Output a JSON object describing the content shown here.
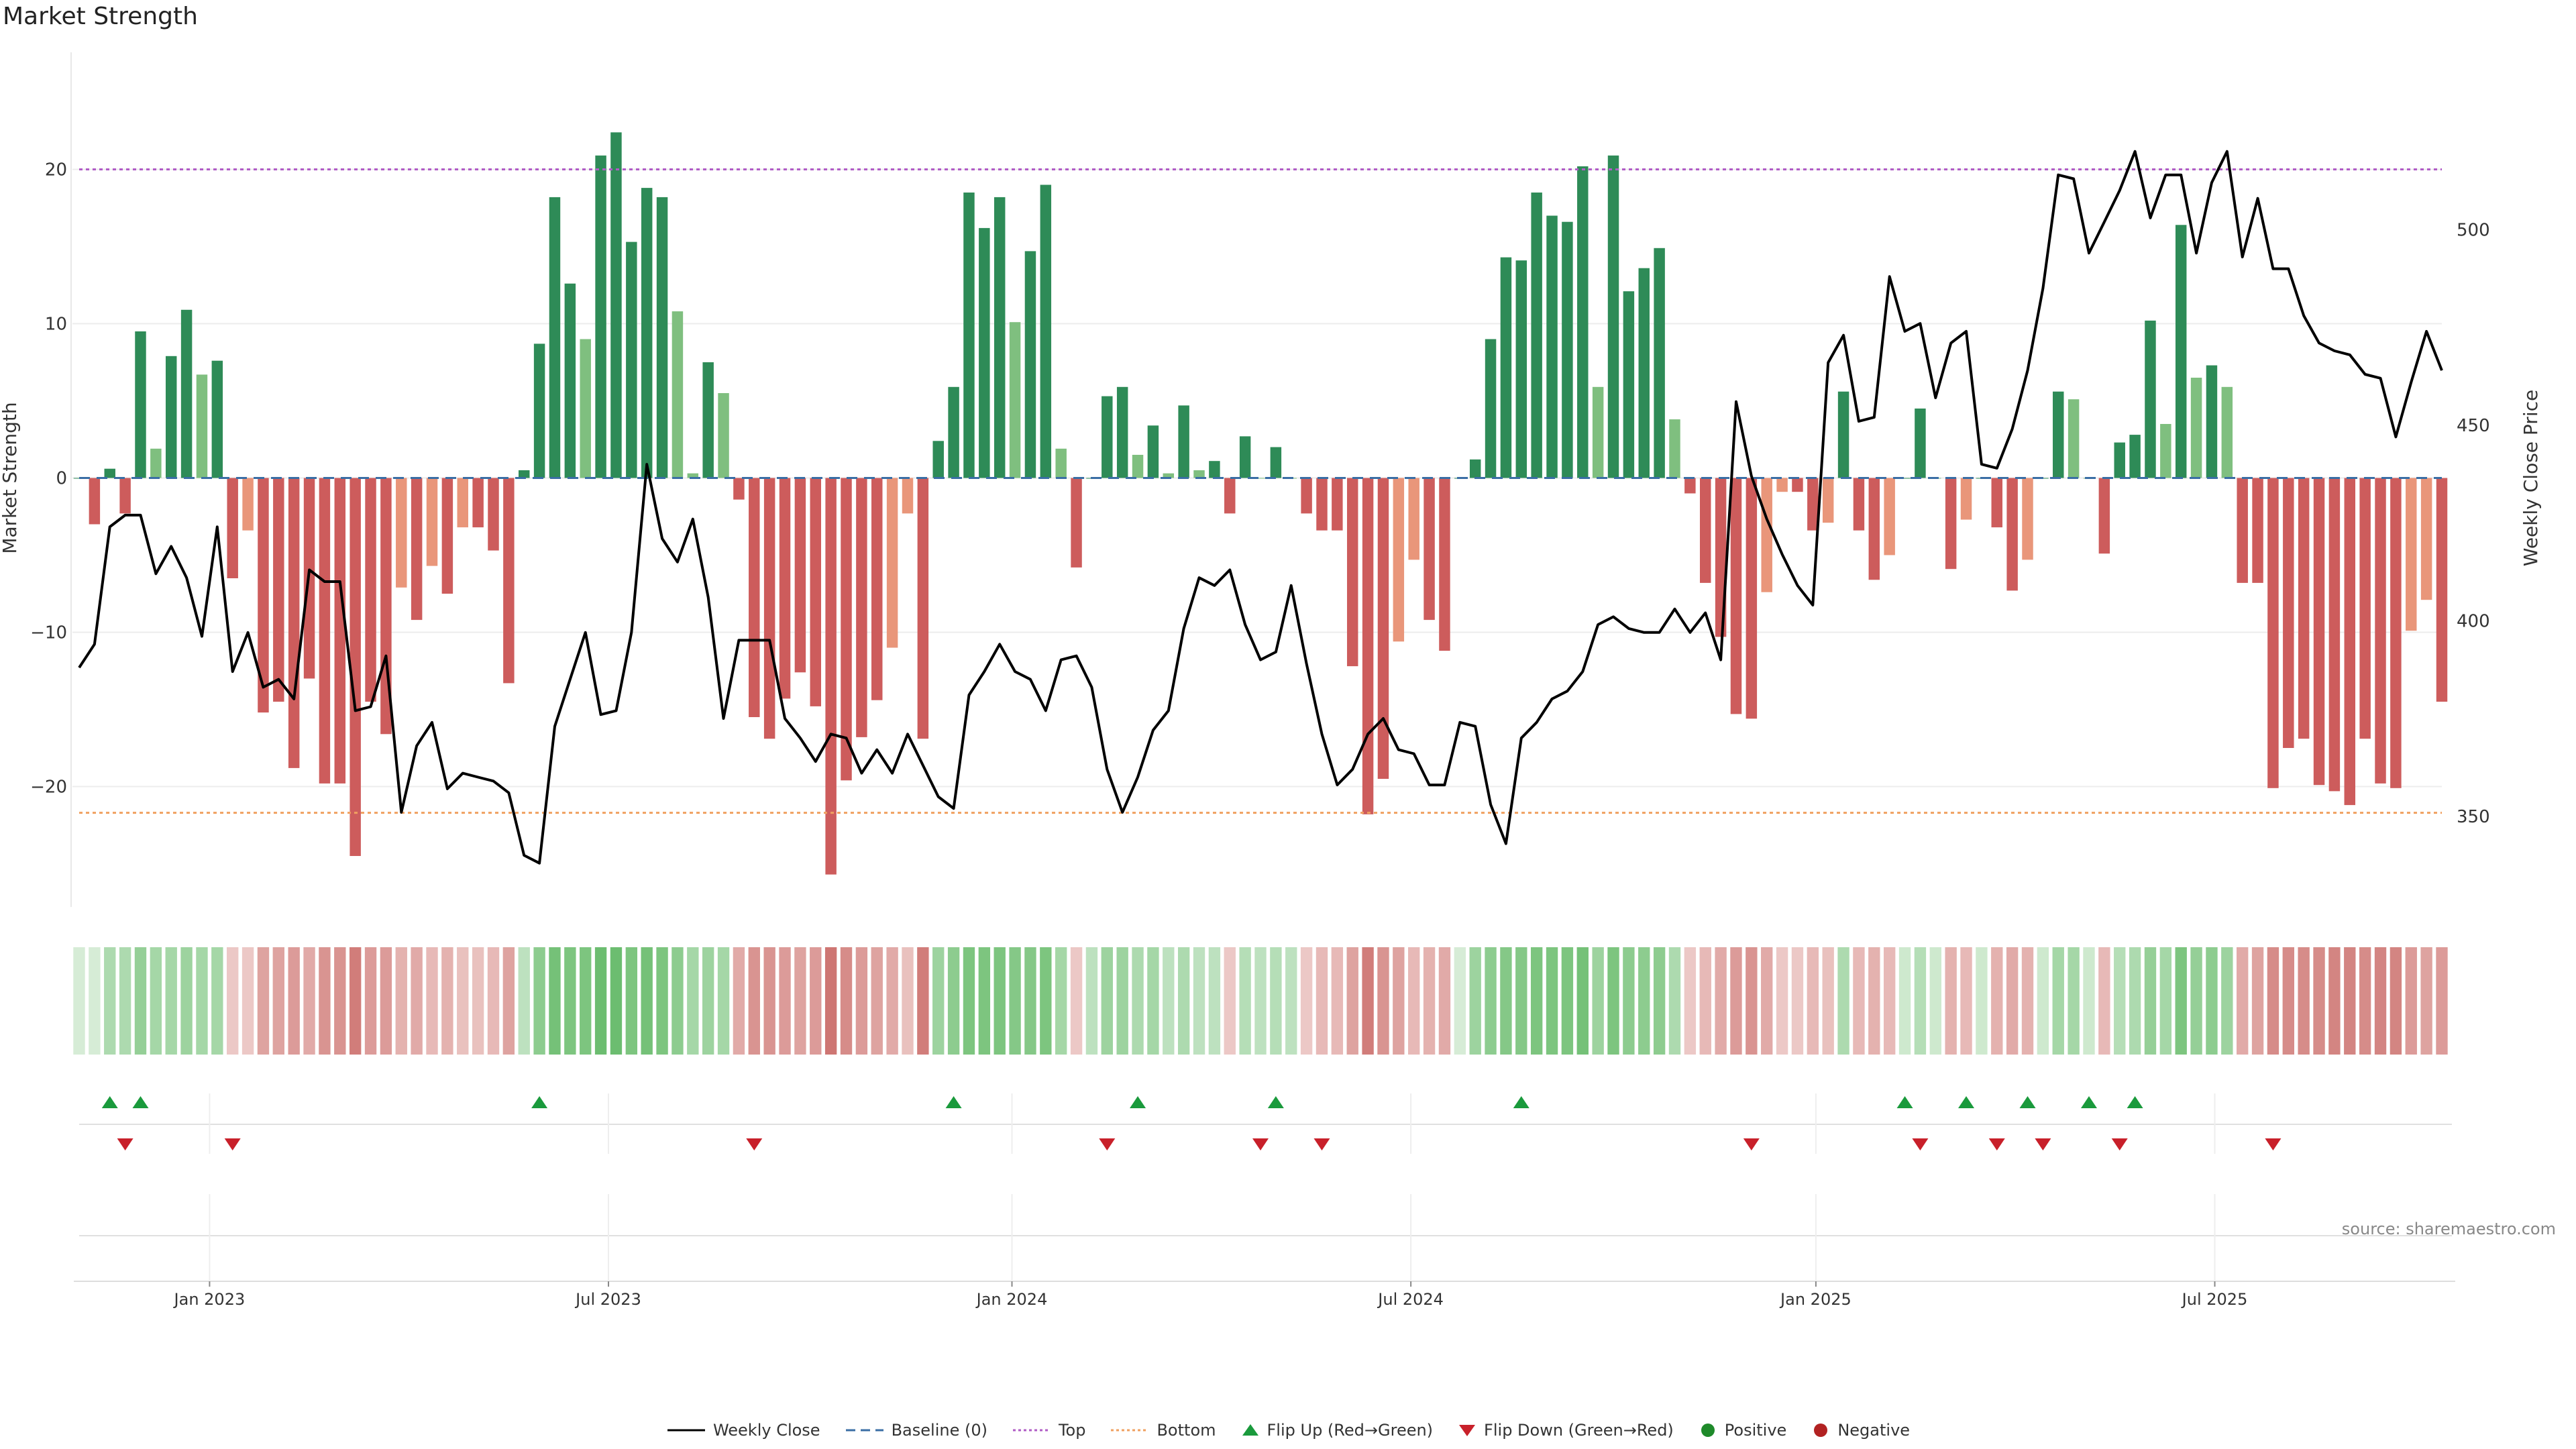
{
  "title": "Market Strength",
  "source": "source: sharemaestro.com",
  "colors": {
    "pos_strong": "#2e8b57",
    "pos_weak": "#7fbf7f",
    "neg_strong": "#cd5c5c",
    "neg_weak": "#e9967a",
    "top": "#b05cc6",
    "bottom": "#f0a060",
    "baseline": "#3a6ea5",
    "close": "#000000",
    "flip_up": "#1a9a3c",
    "flip_down": "#c8202a"
  },
  "legend": [
    {
      "label": "Weekly Close",
      "icon": "line-solid"
    },
    {
      "label": "Baseline (0)",
      "icon": "line-dashed"
    },
    {
      "label": "Top",
      "icon": "line-dotted-purple"
    },
    {
      "label": "Bottom",
      "icon": "line-dotted-orange"
    },
    {
      "label": "Flip Up (Red→Green)",
      "icon": "triangle-up"
    },
    {
      "label": "Flip Down (Green→Red)",
      "icon": "triangle-down"
    },
    {
      "label": "Positive",
      "icon": "circle-green"
    },
    {
      "label": "Negative",
      "icon": "circle-red"
    }
  ],
  "chart_data": {
    "type": "bar",
    "xlabel": "",
    "ylabel": "Market Strength",
    "y2label": "Weekly Close Price",
    "ylim": [
      -27.5,
      27.5
    ],
    "y2lim": [
      328,
      545
    ],
    "yticks": [
      -20,
      -10,
      0,
      10,
      20
    ],
    "y2ticks": [
      350,
      400,
      450,
      500
    ],
    "x_tick_labels": [
      "Jan 2023",
      "Jul 2023",
      "Jan 2024",
      "Jul 2024",
      "Jan 2025",
      "Jul 2025"
    ],
    "x_tick_week_index": [
      8.5,
      34.5,
      60.8,
      86.8,
      113.2,
      139.2
    ],
    "top_threshold": 20,
    "bottom_threshold": -21.7,
    "strength": [
      0,
      -3,
      0.6,
      -2.3,
      9.5,
      1.9,
      7.9,
      10.9,
      6.7,
      7.6,
      -6.5,
      -3.4,
      -15.2,
      -14.5,
      -18.8,
      -13,
      -19.8,
      -19.8,
      -24.5,
      -14.5,
      -16.6,
      -7.1,
      -9.2,
      -5.7,
      -7.5,
      -3.2,
      -3.2,
      -4.7,
      -13.3,
      0.5,
      8.7,
      18.2,
      12.6,
      9,
      20.9,
      22.4,
      15.3,
      18.8,
      18.2,
      10.8,
      0.3,
      7.5,
      5.5,
      -1.4,
      -15.5,
      -16.9,
      -14.3,
      -12.6,
      -14.8,
      -25.7,
      -19.6,
      -16.8,
      -14.4,
      -11,
      -2.3,
      -16.9,
      2.4,
      5.9,
      18.5,
      16.2,
      18.2,
      10.1,
      14.7,
      19,
      1.9,
      -5.8,
      0,
      5.3,
      5.9,
      1.5,
      3.4,
      0.3,
      4.7,
      0.5,
      1.1,
      -2.3,
      2.7,
      0,
      2,
      0,
      -2.3,
      -3.4,
      -3.4,
      -12.2,
      -21.8,
      -19.5,
      -10.6,
      -5.3,
      -9.2,
      -11.2,
      0,
      1.2,
      9,
      14.3,
      14.1,
      18.5,
      17,
      16.6,
      20.2,
      5.9,
      20.9,
      12.1,
      13.6,
      14.9,
      3.8,
      -1,
      -6.8,
      -10.3,
      -15.3,
      -15.6,
      -7.4,
      -0.9,
      -0.9,
      -3.4,
      -2.9,
      5.6,
      -3.4,
      -6.6,
      -5,
      0,
      4.5,
      0,
      -5.9,
      -2.7,
      0,
      -3.2,
      -7.3,
      -5.3,
      0,
      5.6,
      5.1,
      0,
      -4.9,
      2.3,
      2.8,
      10.2,
      3.5,
      16.4,
      6.5,
      7.3,
      5.9,
      -6.8,
      -6.8,
      -20.1,
      -17.5,
      -16.9,
      -19.9,
      -20.3,
      -21.2,
      -16.9,
      -19.8,
      -20.1,
      -9.9,
      -7.9,
      -14.5
    ],
    "weekly_close": [
      388,
      394,
      424,
      427,
      427,
      412,
      419,
      411,
      396,
      424,
      387,
      397,
      383,
      385,
      380,
      413,
      410,
      410,
      377,
      378,
      391,
      351,
      368,
      374,
      357,
      361,
      360,
      359,
      356,
      340,
      338,
      373,
      385,
      397,
      376,
      377,
      397,
      440,
      421,
      415,
      426,
      406,
      375,
      395,
      395,
      395,
      375,
      370,
      364,
      371,
      370,
      361,
      367,
      361,
      371,
      363,
      355,
      352,
      381,
      387,
      394,
      387,
      385,
      377,
      390,
      391,
      383,
      362,
      351,
      360,
      372,
      377,
      398,
      411,
      409,
      413,
      399,
      390,
      392,
      409,
      389,
      371,
      358,
      362,
      371,
      375,
      367,
      366,
      358,
      358,
      374,
      373,
      353,
      343,
      370,
      374,
      380,
      382,
      387,
      399,
      401,
      398,
      397,
      397,
      403,
      397,
      402,
      390,
      456,
      437,
      426,
      417,
      409,
      404,
      466,
      473,
      451,
      452,
      488,
      474,
      476,
      457,
      471,
      474,
      440,
      439,
      449,
      464,
      485,
      514,
      513,
      494,
      502,
      510,
      520,
      503,
      514,
      514,
      494,
      512,
      520,
      493,
      508,
      490,
      490,
      478,
      471,
      469,
      468,
      463,
      462,
      447,
      461,
      474,
      464
    ],
    "trend_band": [
      0.15,
      0.15,
      0.4,
      0.4,
      0.55,
      0.45,
      0.45,
      0.5,
      0.45,
      0.45,
      -0.2,
      -0.2,
      -0.45,
      -0.45,
      -0.5,
      -0.4,
      -0.55,
      -0.55,
      -0.7,
      -0.5,
      -0.5,
      -0.35,
      -0.4,
      -0.3,
      -0.35,
      -0.25,
      -0.25,
      -0.3,
      -0.45,
      0.3,
      0.6,
      0.75,
      0.7,
      0.7,
      0.8,
      0.8,
      0.7,
      0.75,
      0.7,
      0.6,
      0.45,
      0.5,
      0.45,
      -0.4,
      -0.55,
      -0.55,
      -0.5,
      -0.45,
      -0.5,
      -0.75,
      -0.6,
      -0.5,
      -0.45,
      -0.4,
      -0.25,
      -0.7,
      0.5,
      0.6,
      0.7,
      0.7,
      0.7,
      0.65,
      0.65,
      0.7,
      0.45,
      -0.2,
      0.3,
      0.5,
      0.5,
      0.4,
      0.45,
      0.3,
      0.4,
      0.3,
      0.3,
      -0.2,
      0.35,
      0.3,
      0.35,
      0.3,
      -0.2,
      -0.3,
      -0.3,
      -0.45,
      -0.7,
      -0.55,
      -0.45,
      -0.3,
      -0.35,
      -0.4,
      0.15,
      0.5,
      0.6,
      0.65,
      0.65,
      0.7,
      0.7,
      0.7,
      0.75,
      0.5,
      0.7,
      0.6,
      0.6,
      0.6,
      0.4,
      -0.2,
      -0.3,
      -0.4,
      -0.5,
      -0.55,
      -0.4,
      -0.2,
      -0.2,
      -0.3,
      -0.25,
      0.4,
      -0.3,
      -0.35,
      -0.3,
      0.2,
      0.35,
      0.2,
      -0.35,
      -0.3,
      0.2,
      -0.35,
      -0.4,
      -0.35,
      0.2,
      0.45,
      0.45,
      0.2,
      -0.3,
      0.35,
      0.4,
      0.55,
      0.45,
      0.7,
      0.55,
      0.6,
      0.5,
      -0.4,
      -0.45,
      -0.6,
      -0.6,
      -0.6,
      -0.6,
      -0.65,
      -0.65,
      -0.6,
      -0.65,
      -0.65,
      -0.5,
      -0.45,
      -0.5
    ],
    "flip_up_index": [
      2,
      4,
      30,
      57,
      69,
      78,
      94,
      119,
      123,
      127,
      131,
      134
    ],
    "flip_down_index": [
      3,
      10,
      44,
      67,
      77,
      81,
      109,
      120,
      125,
      128,
      133,
      143
    ]
  }
}
